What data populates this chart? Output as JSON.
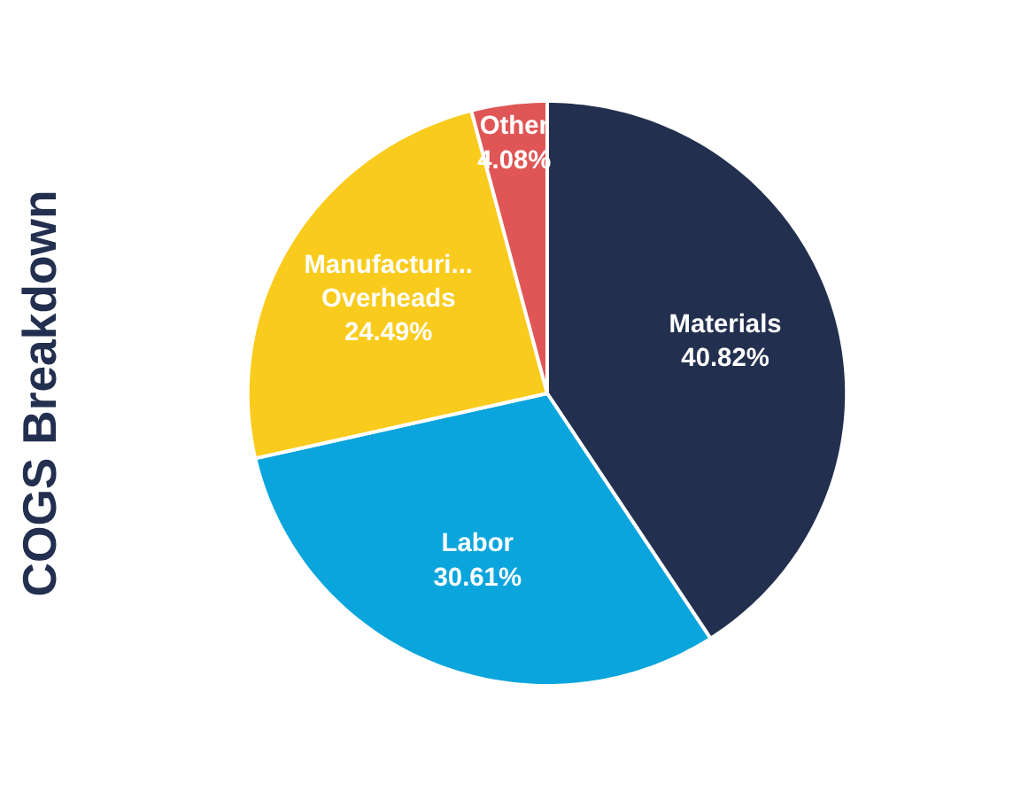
{
  "chart_data": {
    "type": "pie",
    "title": "COGS Breakdown",
    "categories": [
      "Materials",
      "Labor",
      "Manufacturi... Overheads",
      "Other"
    ],
    "values": [
      40.82,
      30.61,
      24.49,
      4.08
    ],
    "value_labels": [
      "40.82%",
      "30.61%",
      "24.49%",
      "4.08%"
    ],
    "colors": [
      "#232f4f",
      "#0aa5dc",
      "#f9cb1c",
      "#e05656"
    ]
  }
}
